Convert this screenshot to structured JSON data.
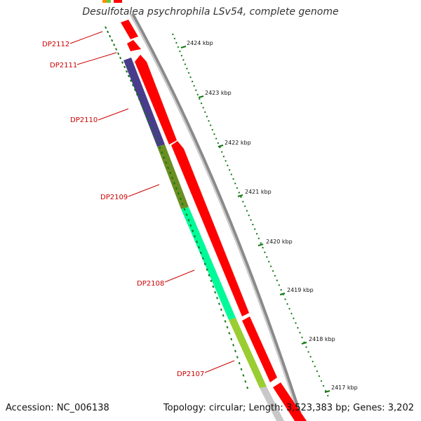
{
  "title": "Desulfotalea psychrophila LSv54, complete genome",
  "footer": {
    "accession": "Accession: NC_006138",
    "stats": "Topology: circular; Length: 3,523,383 bp; Genes: 3,202"
  },
  "colors": {
    "background": "#ffffff",
    "cds": "#ff0000",
    "backbone": "#888888",
    "tick": "#117711",
    "label": "#cc0000"
  },
  "ticks": [
    "2424 kbp",
    "2423 kbp",
    "2422 kbp",
    "2421 kbp",
    "2420 kbp",
    "2419 kbp",
    "2418 kbp",
    "2417 kbp"
  ],
  "genes": [
    {
      "label": "DP2112",
      "cog_color": "#ff8c00"
    },
    {
      "label": "DP2111",
      "cog_color": "#ffffff"
    },
    {
      "label": "DP2110",
      "cog_color": "#483d8b"
    },
    {
      "label": "DP2109",
      "cog_color": "#6b8e23"
    },
    {
      "label": "DP2108",
      "cog_color": "#00fa9a"
    },
    {
      "label": "DP2107",
      "cog_color": "#9acd32"
    }
  ]
}
